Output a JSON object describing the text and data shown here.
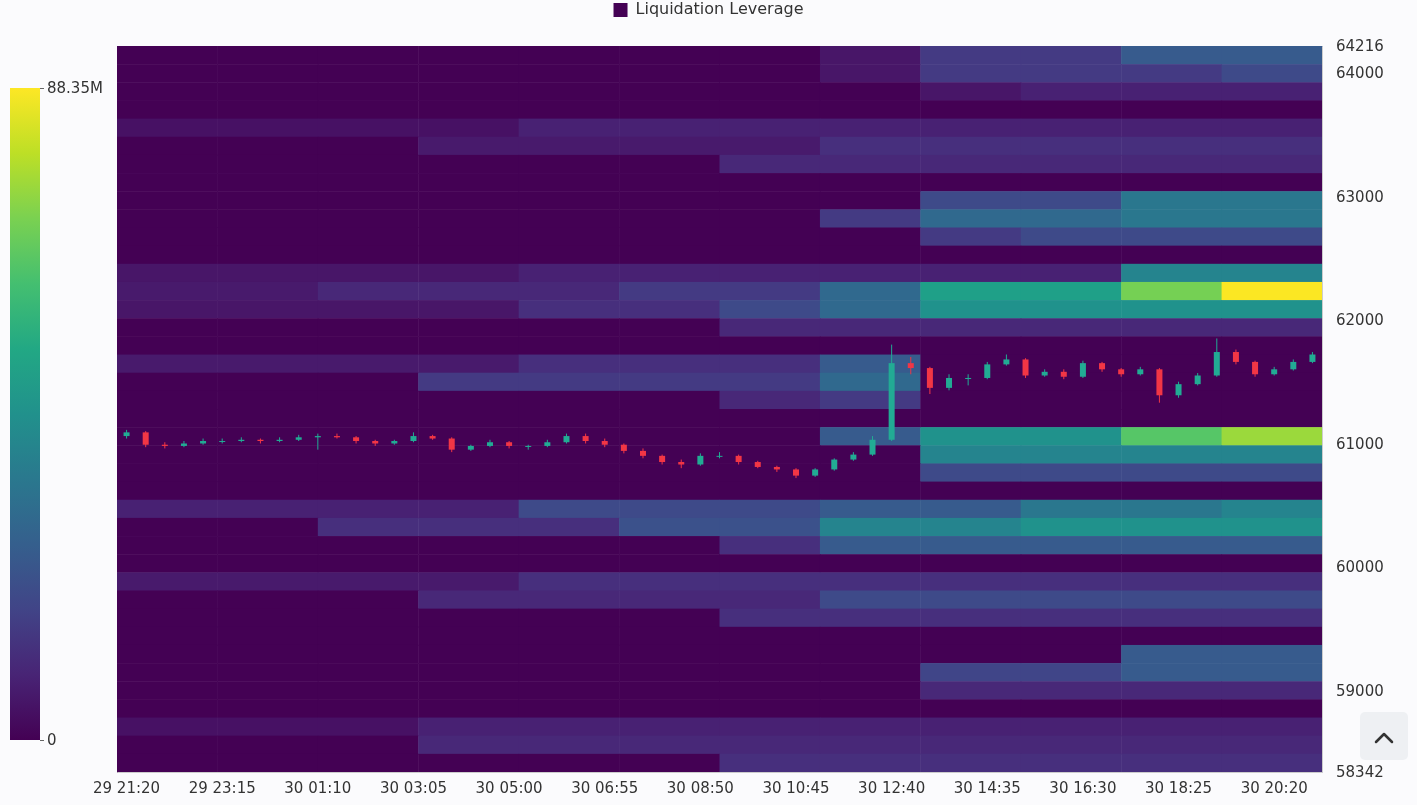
{
  "chart_data": [
    {
      "type": "heatmap",
      "clabel": "Liquidation Leverage",
      "tick_labels": false,
      "clim": [
        0,
        88.35
      ],
      "cticks": [
        {
          "value": 0,
          "label": "0"
        },
        {
          "value": 88.35,
          "label": "88.35M"
        }
      ],
      "categories": [
        null,
        null,
        null,
        null,
        null,
        null,
        null,
        null,
        null,
        null,
        null,
        null
      ],
      "y_categories": [
        null,
        null,
        null,
        null,
        null,
        null,
        null,
        null,
        null,
        null,
        null,
        null,
        null,
        null,
        null,
        null,
        null,
        null,
        null,
        null,
        null,
        null,
        null,
        null,
        null,
        null,
        null,
        null,
        null,
        null,
        null,
        null,
        null,
        null,
        null,
        null,
        null,
        null,
        null,
        null
      ],
      "cells": [
        [
          0,
          0,
          0,
          0,
          0,
          0,
          0,
          5,
          15,
          15,
          25,
          25
        ],
        [
          0,
          0,
          0,
          0,
          0,
          0,
          0,
          5,
          15,
          15,
          15,
          20
        ],
        [
          0,
          0,
          0,
          0,
          0,
          0,
          0,
          0,
          5,
          8,
          8,
          8
        ],
        [
          0,
          0,
          0,
          0,
          0,
          0,
          0,
          0,
          0,
          0,
          0,
          0
        ],
        [
          4,
          4,
          4,
          4,
          8,
          8,
          8,
          8,
          8,
          8,
          8,
          8
        ],
        [
          0,
          0,
          0,
          6,
          6,
          6,
          6,
          12,
          12,
          12,
          12,
          12
        ],
        [
          0,
          0,
          0,
          0,
          0,
          0,
          10,
          10,
          10,
          10,
          10,
          10
        ],
        [
          0,
          0,
          0,
          0,
          0,
          0,
          0,
          0,
          0,
          0,
          0,
          0
        ],
        [
          0,
          0,
          0,
          0,
          0,
          0,
          0,
          0,
          20,
          20,
          35,
          35
        ],
        [
          0,
          0,
          0,
          0,
          0,
          0,
          0,
          15,
          30,
          30,
          35,
          35
        ],
        [
          0,
          0,
          0,
          0,
          0,
          0,
          0,
          0,
          15,
          20,
          20,
          20
        ],
        [
          0,
          0,
          0,
          0,
          0,
          0,
          0,
          0,
          0,
          0,
          0,
          0
        ],
        [
          5,
          5,
          5,
          5,
          8,
          8,
          8,
          8,
          8,
          8,
          40,
          40
        ],
        [
          6,
          6,
          10,
          10,
          10,
          15,
          15,
          30,
          50,
          50,
          70,
          88
        ],
        [
          5,
          5,
          5,
          5,
          12,
          12,
          20,
          30,
          45,
          45,
          45,
          45
        ],
        [
          0,
          0,
          0,
          0,
          0,
          0,
          10,
          10,
          10,
          10,
          10,
          10
        ],
        [
          0,
          0,
          0,
          0,
          0,
          0,
          0,
          0,
          0,
          0,
          0,
          0
        ],
        [
          6,
          6,
          6,
          6,
          12,
          12,
          12,
          25,
          0,
          0,
          0,
          0
        ],
        [
          0,
          0,
          0,
          15,
          15,
          15,
          15,
          30,
          0,
          0,
          0,
          0
        ],
        [
          0,
          0,
          0,
          0,
          0,
          0,
          10,
          15,
          0,
          0,
          0,
          0
        ],
        [
          0,
          0,
          0,
          0,
          0,
          0,
          0,
          0,
          0,
          0,
          0,
          0
        ],
        [
          0,
          0,
          0,
          0,
          0,
          0,
          0,
          25,
          45,
          45,
          65,
          75
        ],
        [
          0,
          0,
          0,
          0,
          0,
          0,
          0,
          0,
          40,
          40,
          40,
          40
        ],
        [
          0,
          0,
          0,
          0,
          0,
          0,
          0,
          0,
          20,
          20,
          20,
          20
        ],
        [
          0,
          0,
          0,
          0,
          0,
          0,
          0,
          0,
          0,
          0,
          0,
          0
        ],
        [
          8,
          8,
          8,
          8,
          20,
          20,
          20,
          25,
          25,
          35,
          35,
          40
        ],
        [
          0,
          0,
          12,
          12,
          12,
          22,
          22,
          40,
          40,
          45,
          45,
          45
        ],
        [
          0,
          0,
          0,
          0,
          0,
          0,
          12,
          25,
          25,
          25,
          25,
          25
        ],
        [
          0,
          0,
          0,
          0,
          0,
          0,
          0,
          0,
          0,
          0,
          0,
          0
        ],
        [
          6,
          6,
          6,
          6,
          12,
          12,
          12,
          12,
          12,
          12,
          12,
          12
        ],
        [
          0,
          0,
          0,
          10,
          10,
          10,
          10,
          20,
          20,
          20,
          20,
          20
        ],
        [
          0,
          0,
          0,
          0,
          0,
          0,
          12,
          12,
          12,
          12,
          12,
          12
        ],
        [
          0,
          0,
          0,
          0,
          0,
          0,
          0,
          0,
          0,
          0,
          0,
          0
        ],
        [
          0,
          0,
          0,
          0,
          0,
          0,
          0,
          0,
          0,
          0,
          25,
          25
        ],
        [
          0,
          0,
          0,
          0,
          0,
          0,
          0,
          0,
          18,
          18,
          25,
          25
        ],
        [
          0,
          0,
          0,
          0,
          0,
          0,
          0,
          0,
          10,
          10,
          10,
          10
        ],
        [
          0,
          0,
          0,
          0,
          0,
          0,
          0,
          0,
          0,
          0,
          0,
          0
        ],
        [
          4,
          4,
          4,
          8,
          8,
          8,
          8,
          8,
          8,
          8,
          8,
          8
        ],
        [
          0,
          0,
          0,
          10,
          10,
          10,
          10,
          10,
          10,
          10,
          10,
          10
        ],
        [
          0,
          0,
          0,
          0,
          0,
          0,
          12,
          12,
          12,
          12,
          12,
          12
        ]
      ]
    },
    {
      "type": "candlestick",
      "ylim": [
        58342,
        64216
      ],
      "yticks": [
        58342,
        59000,
        60000,
        61000,
        62000,
        63000,
        64000,
        64216
      ],
      "categories": [
        "29 21:20",
        null,
        null,
        null,
        null,
        "29 23:15",
        null,
        null,
        null,
        null,
        "30 01:10",
        null,
        null,
        null,
        null,
        "30 03:05",
        null,
        null,
        null,
        null,
        "30 05:00",
        null,
        null,
        null,
        null,
        "30 06:55",
        null,
        null,
        null,
        null,
        "30 08:50",
        null,
        null,
        null,
        null,
        "30 10:45",
        null,
        null,
        null,
        null,
        "30 12:40",
        null,
        null,
        null,
        null,
        "30 14:35",
        null,
        null,
        null,
        null,
        "30 16:30",
        null,
        null,
        null,
        null,
        "30 18:25",
        null,
        null,
        null,
        null,
        "30 20:20",
        null,
        null
      ],
      "ohlc": [
        [
          61060,
          61110,
          61040,
          61090
        ],
        [
          61090,
          61100,
          60970,
          60990
        ],
        [
          60990,
          61010,
          60960,
          60980
        ],
        [
          60980,
          61020,
          60970,
          61000
        ],
        [
          61000,
          61040,
          60990,
          61020
        ],
        [
          61020,
          61040,
          61000,
          61020
        ],
        [
          61020,
          61050,
          61010,
          61030
        ],
        [
          61030,
          61040,
          61000,
          61020
        ],
        [
          61020,
          61050,
          61010,
          61030
        ],
        [
          61030,
          61070,
          61020,
          61050
        ],
        [
          61050,
          61080,
          60950,
          61060
        ],
        [
          61060,
          61080,
          61040,
          61050
        ],
        [
          61050,
          61060,
          61000,
          61020
        ],
        [
          61020,
          61030,
          60980,
          61000
        ],
        [
          61000,
          61030,
          60990,
          61020
        ],
        [
          61020,
          61090,
          61010,
          61060
        ],
        [
          61060,
          61070,
          61030,
          61040
        ],
        [
          61040,
          61050,
          60930,
          60950
        ],
        [
          60950,
          60990,
          60940,
          60980
        ],
        [
          60980,
          61030,
          60970,
          61010
        ],
        [
          61010,
          61020,
          60960,
          60980
        ],
        [
          60980,
          60990,
          60950,
          60980
        ],
        [
          60980,
          61030,
          60970,
          61010
        ],
        [
          61010,
          61080,
          61000,
          61060
        ],
        [
          61060,
          61080,
          61000,
          61020
        ],
        [
          61020,
          61040,
          60970,
          60990
        ],
        [
          60990,
          61000,
          60920,
          60940
        ],
        [
          60940,
          60960,
          60880,
          60900
        ],
        [
          60900,
          60910,
          60830,
          60850
        ],
        [
          60850,
          60870,
          60800,
          60830
        ],
        [
          60830,
          60920,
          60820,
          60900
        ],
        [
          60900,
          60930,
          60880,
          60900
        ],
        [
          60900,
          60910,
          60830,
          60850
        ],
        [
          60850,
          60860,
          60800,
          60810
        ],
        [
          60810,
          60820,
          60770,
          60790
        ],
        [
          60790,
          60800,
          60720,
          60740
        ],
        [
          60740,
          60800,
          60730,
          60790
        ],
        [
          60790,
          60880,
          60780,
          60870
        ],
        [
          60870,
          60930,
          60860,
          60910
        ],
        [
          60910,
          61060,
          60900,
          61030
        ],
        [
          61030,
          61800,
          61020,
          61650
        ],
        [
          61650,
          61700,
          61560,
          61610
        ],
        [
          61610,
          61620,
          61400,
          61450
        ],
        [
          61450,
          61560,
          61430,
          61530
        ],
        [
          61530,
          61560,
          61470,
          61530
        ],
        [
          61530,
          61660,
          61520,
          61640
        ],
        [
          61640,
          61720,
          61630,
          61680
        ],
        [
          61680,
          61690,
          61530,
          61550
        ],
        [
          61550,
          61600,
          61540,
          61580
        ],
        [
          61580,
          61600,
          61520,
          61540
        ],
        [
          61540,
          61670,
          61530,
          61650
        ],
        [
          61650,
          61660,
          61580,
          61600
        ],
        [
          61600,
          61610,
          61540,
          61560
        ],
        [
          61560,
          61620,
          61550,
          61600
        ],
        [
          61600,
          61610,
          61330,
          61390
        ],
        [
          61390,
          61500,
          61370,
          61480
        ],
        [
          61480,
          61570,
          61470,
          61550
        ],
        [
          61550,
          61850,
          61540,
          61740
        ],
        [
          61740,
          61760,
          61640,
          61660
        ],
        [
          61660,
          61670,
          61540,
          61560
        ],
        [
          61560,
          61620,
          61550,
          61600
        ],
        [
          61600,
          61680,
          61590,
          61660
        ],
        [
          61660,
          61740,
          61650,
          61720
        ]
      ]
    }
  ]
}
